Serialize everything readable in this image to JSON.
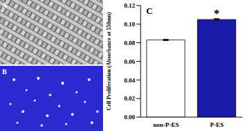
{
  "chart_data": {
    "type": "bar",
    "title": "C",
    "categories": [
      "non-P-ES",
      "P-ES"
    ],
    "values": [
      0.083,
      0.105
    ],
    "errors": [
      0.0005,
      0.0008
    ],
    "colors": [
      "#ffffff",
      "#1a1aa8"
    ],
    "ylabel": "Cell Proliferation (Absorbance at 550nm)",
    "ylim": [
      0,
      0.12
    ],
    "yticks": [
      {
        "value": 0,
        "label": "0.00"
      },
      {
        "value": 0.02,
        "label": "0.02"
      },
      {
        "value": 0.04,
        "label": "0.04"
      },
      {
        "value": 0.06,
        "label": "0.06"
      },
      {
        "value": 0.08,
        "label": "0.08"
      },
      {
        "value": 0.1,
        "label": "0.10"
      },
      {
        "value": 0.12,
        "label": "0.12"
      }
    ],
    "annotations": [
      {
        "category": "P-ES",
        "text": "*"
      }
    ]
  },
  "images": [
    {
      "label": "A"
    },
    {
      "label": "B"
    }
  ]
}
